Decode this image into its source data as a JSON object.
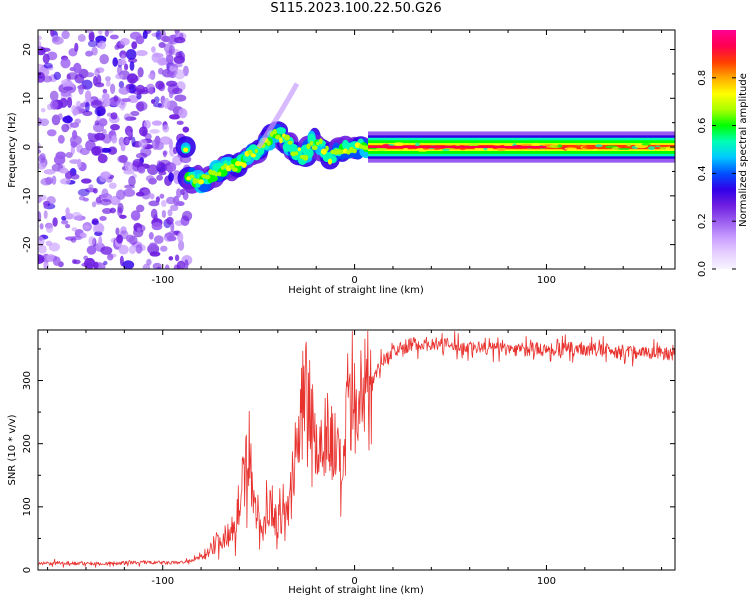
{
  "figure": {
    "title": "S115.2023.100.22.50.G26"
  },
  "colors": {
    "snr_line": "#e8322e",
    "colormap": [
      "#f5f5ff",
      "#e6cfff",
      "#c79cff",
      "#9a5cf0",
      "#6e1ee0",
      "#3000e8",
      "#0050ff",
      "#00c8ff",
      "#00ffb4",
      "#00ff00",
      "#aaff00",
      "#ffff00",
      "#ffaa00",
      "#ff3c00",
      "#ff0050",
      "#ff0090"
    ]
  },
  "chart_data": [
    {
      "type": "heatmap",
      "xlabel": "Height of straight line (km)",
      "ylabel": "Frequency (Hz)",
      "xlim": [
        -165,
        167
      ],
      "ylim": [
        -25,
        24
      ],
      "xticks": [
        -100,
        0,
        100
      ],
      "yticks": [
        -20,
        -10,
        0,
        10,
        20
      ],
      "colorbar": {
        "label": "Normalized spectral amplitude",
        "range": [
          0,
          1
        ],
        "ticks": [
          "0.0",
          "0.2",
          "0.4",
          "0.6",
          "0.8"
        ]
      },
      "regions": [
        {
          "x_range": [
            -165,
            -87
          ],
          "description_values": {
            "f_range": [
              -25,
              24
            ],
            "amplitude": 0.1
          }
        },
        {
          "x_range": [
            -87,
            7
          ],
          "description_values": {
            "f_start": -6,
            "f_end": 0,
            "amplitude": 0.35
          }
        },
        {
          "x_range": [
            7,
            167
          ],
          "description_values": {
            "f": 0,
            "amplitude": 0.85
          }
        }
      ],
      "ridge": [
        [
          -87,
          -6
        ],
        [
          -80,
          -7
        ],
        [
          -72,
          -5
        ],
        [
          -65,
          -4
        ],
        [
          -58,
          -3
        ],
        [
          -52,
          -1
        ],
        [
          -46,
          1
        ],
        [
          -40,
          3
        ],
        [
          -33,
          0
        ],
        [
          -27,
          -2
        ],
        [
          -22,
          1
        ],
        [
          -17,
          0
        ],
        [
          -13,
          -2
        ],
        [
          -9,
          -1
        ],
        [
          -5,
          0
        ],
        [
          0,
          0
        ],
        [
          7,
          0
        ],
        [
          50,
          0
        ],
        [
          100,
          0
        ],
        [
          167,
          0
        ]
      ]
    },
    {
      "type": "line",
      "xlabel": "Height of straight line (km)",
      "ylabel": "SNR (10 * v/v)",
      "xlim": [
        -165,
        167
      ],
      "ylim": [
        0,
        380
      ],
      "xticks": [
        -100,
        0,
        100
      ],
      "yticks": [
        0,
        100,
        200,
        300
      ],
      "x": [
        -165,
        -150,
        -130,
        -110,
        -95,
        -85,
        -78,
        -72,
        -66,
        -62,
        -58,
        -55,
        -52,
        -48,
        -44,
        -40,
        -36,
        -32,
        -28,
        -25,
        -22,
        -19,
        -16,
        -13,
        -10,
        -7,
        -4,
        -1,
        2,
        5,
        8,
        12,
        16,
        20,
        25,
        30,
        40,
        50,
        60,
        80,
        100,
        120,
        140,
        160,
        167
      ],
      "y": [
        10,
        11,
        10,
        12,
        11,
        14,
        25,
        45,
        55,
        80,
        140,
        200,
        90,
        60,
        110,
        70,
        90,
        130,
        240,
        300,
        260,
        170,
        230,
        210,
        190,
        150,
        220,
        250,
        230,
        275,
        295,
        320,
        335,
        345,
        352,
        358,
        358,
        356,
        352,
        350,
        349,
        350,
        346,
        344,
        342
      ]
    }
  ]
}
